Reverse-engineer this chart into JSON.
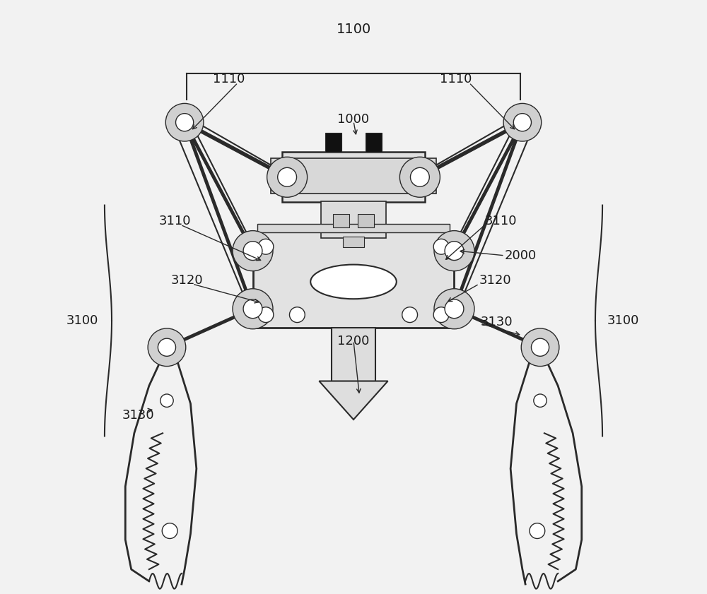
{
  "bg_color": "#f2f2f2",
  "line_color": "#2a2a2a",
  "label_color": "#1a1a1a",
  "figure_width": 10.0,
  "figure_height": 8.41,
  "dpi": 100
}
